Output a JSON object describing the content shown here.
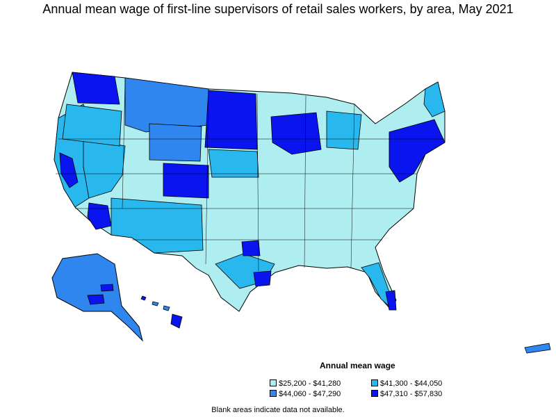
{
  "title": "Annual mean wage of first-line supervisors of retail sales workers, by area, May 2021",
  "legend": {
    "title": "Annual mean wage",
    "items": [
      {
        "label": "$25,200 - $41,280",
        "color": "#aeeef0"
      },
      {
        "label": "$41,300 - $44,050",
        "color": "#28b8ee"
      },
      {
        "label": "$44,060 - $47,290",
        "color": "#2e86ee"
      },
      {
        "label": "$47,310 - $57,830",
        "color": "#0a14ee"
      }
    ]
  },
  "footnote": "Blank areas indicate data not available.",
  "colors": {
    "tier1": "#aeeef0",
    "tier2": "#28b8ee",
    "tier3": "#2e86ee",
    "tier4": "#0a14ee",
    "border": "#000000"
  }
}
